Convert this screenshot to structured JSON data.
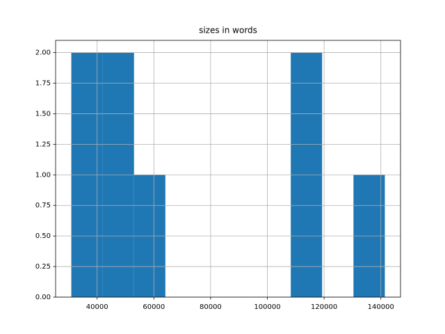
{
  "chart_data": {
    "type": "histogram",
    "title": "sizes in words",
    "bins": [
      30900,
      41950,
      53000,
      64050,
      75100,
      86150,
      97200,
      108250,
      119300,
      130350,
      141400
    ],
    "counts": [
      2,
      2,
      1,
      0,
      0,
      0,
      0,
      2,
      0,
      1
    ],
    "color": "#1f77b4",
    "xlim": [
      25375,
      146925
    ],
    "xticks": [
      40000,
      60000,
      80000,
      100000,
      120000,
      140000
    ],
    "ylim": [
      0,
      2.1
    ],
    "yticks": [
      {
        "value": 0,
        "label": "0.00"
      },
      {
        "value": 0.25,
        "label": "0.25"
      },
      {
        "value": 0.5,
        "label": "0.50"
      },
      {
        "value": 0.75,
        "label": "0.75"
      },
      {
        "value": 1,
        "label": "1.00"
      },
      {
        "value": 1.25,
        "label": "1.25"
      },
      {
        "value": 1.5,
        "label": "1.50"
      },
      {
        "value": 1.75,
        "label": "1.75"
      },
      {
        "value": 2,
        "label": "2.00"
      }
    ],
    "grid": true
  }
}
